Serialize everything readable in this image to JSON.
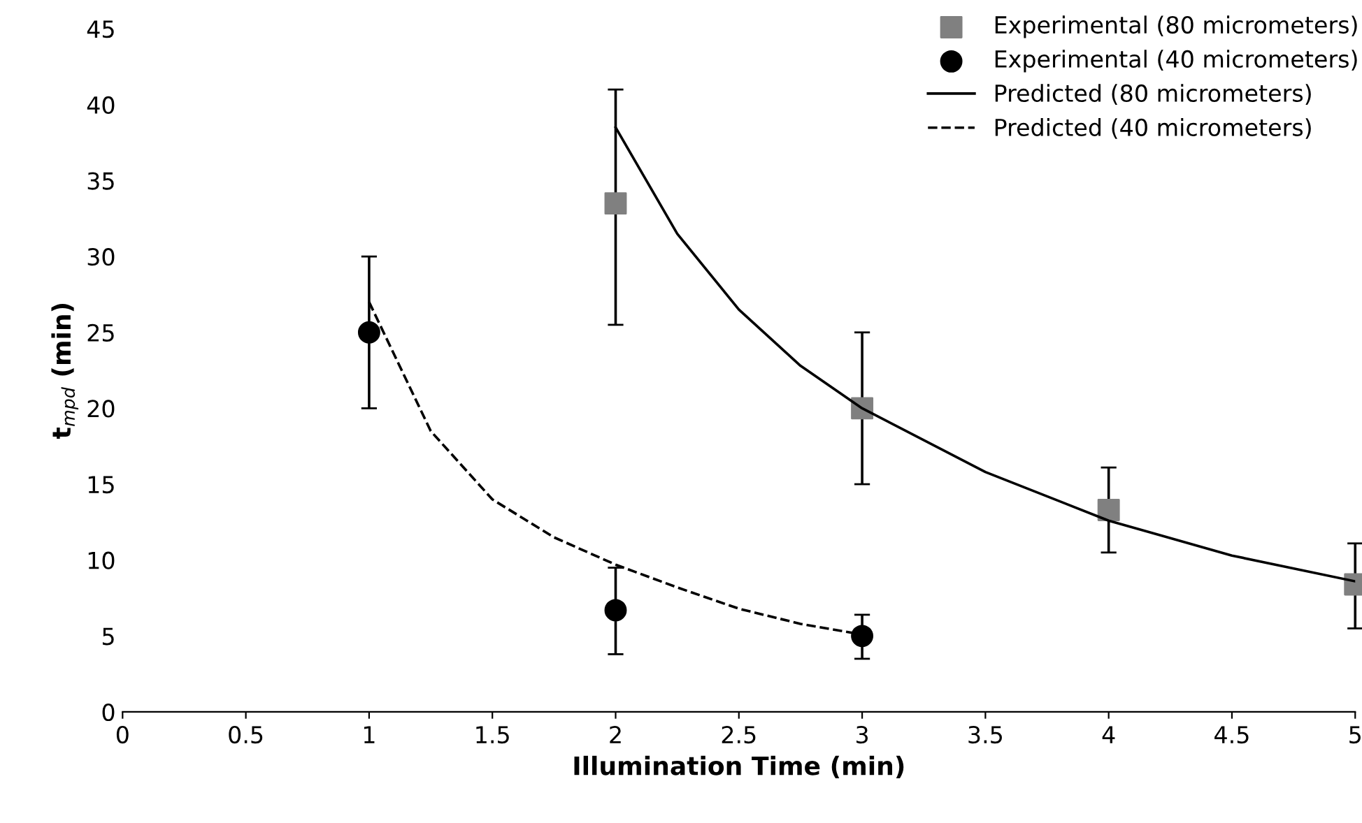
{
  "chart_data": {
    "type": "scatter",
    "xlabel": "Illumination Time (min)",
    "ylabel": "t$_{mpd}$ (min)",
    "xlim": [
      0,
      5
    ],
    "xticks": [
      0,
      0.5,
      1,
      1.5,
      2,
      2.5,
      3,
      3.5,
      4,
      4.5,
      5
    ],
    "ylim": [
      0,
      45
    ],
    "yticks": [
      0,
      5,
      10,
      15,
      20,
      25,
      30,
      35,
      40,
      45
    ],
    "grid": false,
    "legend": "top right",
    "series": [
      {
        "name": "Experimental (80 micrometers)",
        "marker": "square",
        "color": "#808080",
        "x": [
          2,
          3,
          4,
          5
        ],
        "values": [
          33.5,
          20,
          13.3,
          8.4
        ],
        "errors": [
          [
            25.5,
            41
          ],
          [
            15,
            25
          ],
          [
            10.5,
            16.1
          ],
          [
            5.5,
            11.1
          ]
        ]
      },
      {
        "name": "Experimental (40 micrometers)",
        "marker": "circle",
        "color": "#000000",
        "x": [
          1,
          2,
          3
        ],
        "values": [
          25,
          6.7,
          5
        ],
        "errors": [
          [
            20,
            30
          ],
          [
            3.8,
            9.5
          ],
          [
            3.5,
            6.4
          ]
        ]
      },
      {
        "name": "Predicted (80 micrometers)",
        "type": "line",
        "line_style": "solid",
        "color": "#000000",
        "x": [
          2,
          2.25,
          2.5,
          2.75,
          3,
          3.5,
          4,
          4.5,
          5
        ],
        "values": [
          38.5,
          31.5,
          26.5,
          22.8,
          20,
          15.8,
          12.6,
          10.3,
          8.6
        ]
      },
      {
        "name": "Predicted (40 micrometers)",
        "type": "line",
        "line_style": "dashed",
        "color": "#000000",
        "x": [
          1,
          1.25,
          1.5,
          1.75,
          2,
          2.25,
          2.5,
          2.75,
          3
        ],
        "values": [
          27,
          18.5,
          14,
          11.5,
          9.7,
          8.2,
          6.8,
          5.8,
          5.1
        ]
      }
    ]
  }
}
